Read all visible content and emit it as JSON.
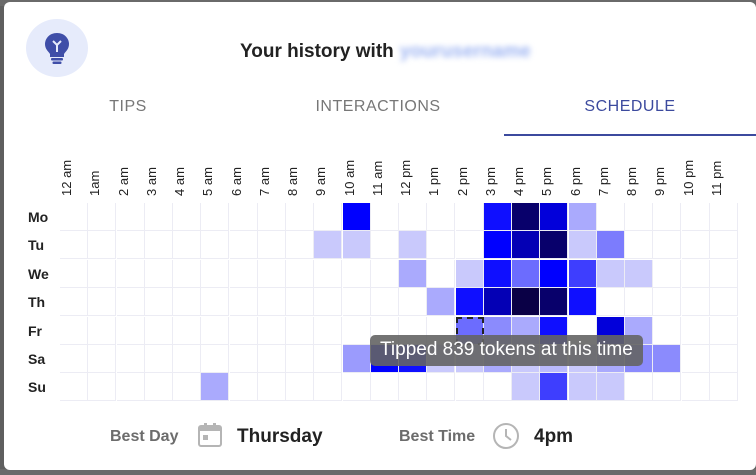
{
  "header": {
    "title": "Your history with",
    "username": "yourusername"
  },
  "tabs": [
    {
      "label": "TIPS",
      "active": false
    },
    {
      "label": "INTERACTIONS",
      "active": false
    },
    {
      "label": "SCHEDULE",
      "active": true
    }
  ],
  "schedule": {
    "hours": [
      "12 am",
      "1am",
      "2 am",
      "3 am",
      "4 am",
      "5 am",
      "6 am",
      "7 am",
      "8 am",
      "9 am",
      "10 am",
      "11 am",
      "12 pm",
      "1 pm",
      "2 pm",
      "3 pm",
      "4 pm",
      "5 pm",
      "6 pm",
      "7 pm",
      "8 pm",
      "9 pm",
      "10 pm",
      "11 pm"
    ],
    "days": [
      "Mo",
      "Tu",
      "We",
      "Th",
      "Fr",
      "Sa",
      "Su"
    ],
    "intensity": [
      [
        0,
        0,
        0,
        0,
        0,
        0,
        0,
        0,
        0,
        0,
        0.75,
        0,
        0,
        0,
        0,
        0.7,
        0.95,
        0.8,
        0.2,
        0,
        0,
        0,
        0,
        0
      ],
      [
        0,
        0,
        0,
        0,
        0,
        0,
        0,
        0,
        0,
        0.1,
        0.1,
        0,
        0.1,
        0,
        0,
        0.75,
        0.85,
        0.95,
        0.1,
        0.35,
        0,
        0,
        0,
        0
      ],
      [
        0,
        0,
        0,
        0,
        0,
        0,
        0,
        0,
        0,
        0,
        0,
        0,
        0.2,
        0,
        0.1,
        0.7,
        0.4,
        0.75,
        0.55,
        0.1,
        0.1,
        0,
        0,
        0
      ],
      [
        0,
        0,
        0,
        0,
        0,
        0,
        0,
        0,
        0,
        0,
        0,
        0,
        0,
        0.2,
        0.7,
        0.85,
        1.0,
        0.95,
        0.7,
        0,
        0,
        0,
        0,
        0
      ],
      [
        0,
        0,
        0,
        0,
        0,
        0,
        0,
        0,
        0,
        0,
        0,
        0,
        0,
        0,
        0.4,
        0.3,
        0.2,
        0.7,
        0,
        0.8,
        0.2,
        0,
        0,
        0
      ],
      [
        0,
        0,
        0,
        0,
        0,
        0,
        0,
        0,
        0,
        0,
        0.25,
        0.75,
        0.7,
        0.1,
        0.1,
        0.2,
        0.1,
        0.15,
        0.1,
        0.2,
        0.3,
        0.3,
        0,
        0
      ],
      [
        0,
        0,
        0,
        0,
        0,
        0.2,
        0,
        0,
        0,
        0,
        0,
        0,
        0,
        0,
        0,
        0,
        0.1,
        0.55,
        0.1,
        0.1,
        0,
        0,
        0,
        0
      ]
    ],
    "selected_cell": {
      "day": "Fr",
      "hour": "2 pm"
    },
    "tooltip": "Tipped 839 tokens at this time",
    "base_color": "#0000ff",
    "best_day_label": "Best Day",
    "best_day": "Thursday",
    "best_time_label": "Best Time",
    "best_time": "4pm"
  }
}
